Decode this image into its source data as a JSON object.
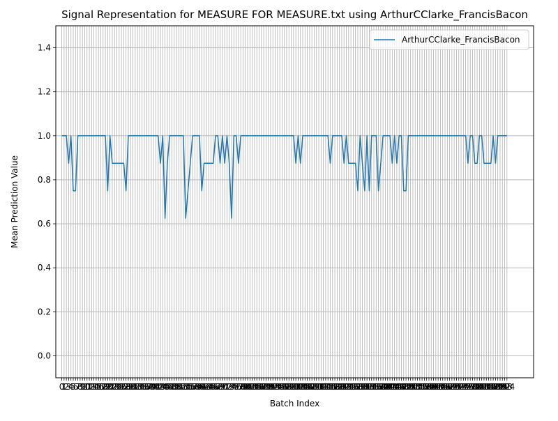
{
  "chart_data": {
    "type": "line",
    "title": "Signal Representation for MEASURE FOR MEASURE.txt using ArthurCClarke_FrancisBacon",
    "xlabel": "Batch Index",
    "ylabel": "Mean Prediction Value",
    "xlim": [
      -2.6,
      205.6
    ],
    "ylim": [
      -0.1,
      1.5
    ],
    "y_ticks": [
      "0.0",
      "0.2",
      "0.4",
      "0.6",
      "0.8",
      "1.0",
      "1.2",
      "1.4"
    ],
    "x_tick_labels_visible": "0 1 2 3 4 5 6 7 8 9 10 ... 196 197 198 199 200 201 202 203",
    "x_tick_step": 1,
    "grid": true,
    "legend_position": "top-right",
    "series": [
      {
        "name": "ArthurCClarke_FrancisBacon",
        "color": "#1f77b4",
        "values": [
          1.0,
          1.0,
          1.0,
          0.875,
          1.0,
          0.75,
          0.75,
          1.0,
          1.0,
          1.0,
          1.0,
          1.0,
          1.0,
          1.0,
          1.0,
          1.0,
          1.0,
          1.0,
          1.0,
          1.0,
          0.75,
          1.0,
          0.875,
          0.875,
          0.875,
          0.875,
          0.875,
          0.875,
          0.75,
          1.0,
          1.0,
          1.0,
          1.0,
          1.0,
          1.0,
          1.0,
          1.0,
          1.0,
          1.0,
          1.0,
          1.0,
          1.0,
          1.0,
          0.875,
          1.0,
          0.625,
          0.875,
          1.0,
          1.0,
          1.0,
          1.0,
          1.0,
          1.0,
          1.0,
          0.625,
          0.75,
          0.875,
          1.0,
          1.0,
          1.0,
          1.0,
          0.75,
          0.875,
          0.875,
          0.875,
          0.875,
          0.875,
          1.0,
          1.0,
          0.875,
          1.0,
          0.875,
          1.0,
          0.875,
          0.625,
          1.0,
          1.0,
          0.875,
          1.0,
          1.0,
          1.0,
          1.0,
          1.0,
          1.0,
          1.0,
          1.0,
          1.0,
          1.0,
          1.0,
          1.0,
          1.0,
          1.0,
          1.0,
          1.0,
          1.0,
          1.0,
          1.0,
          1.0,
          1.0,
          1.0,
          1.0,
          1.0,
          0.875,
          1.0,
          0.875,
          1.0,
          1.0,
          1.0,
          1.0,
          1.0,
          1.0,
          1.0,
          1.0,
          1.0,
          1.0,
          1.0,
          1.0,
          0.875,
          1.0,
          1.0,
          1.0,
          1.0,
          1.0,
          0.875,
          1.0,
          0.875,
          0.875,
          0.875,
          0.875,
          0.75,
          1.0,
          0.875,
          0.75,
          1.0,
          0.75,
          1.0,
          1.0,
          1.0,
          0.75,
          0.875,
          1.0,
          1.0,
          1.0,
          1.0,
          0.875,
          1.0,
          0.875,
          1.0,
          1.0,
          0.75,
          0.75,
          1.0,
          1.0,
          1.0,
          1.0,
          1.0,
          1.0,
          1.0,
          1.0,
          1.0,
          1.0,
          1.0,
          1.0,
          1.0,
          1.0,
          1.0,
          1.0,
          1.0,
          1.0,
          1.0,
          1.0,
          1.0,
          1.0,
          1.0,
          1.0,
          1.0,
          1.0,
          0.875,
          1.0,
          1.0,
          0.875,
          0.875,
          1.0,
          1.0,
          0.875,
          0.875,
          0.875,
          0.875,
          1.0,
          0.875,
          1.0,
          1.0,
          1.0,
          1.0,
          1.0
        ]
      }
    ]
  }
}
